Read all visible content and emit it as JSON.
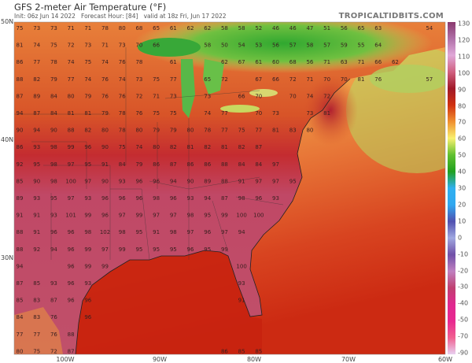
{
  "header": {
    "title": "GFS 2-meter Air Temperature (°F)",
    "subtitle_init": "Init: 06z Jun 14 2022",
    "subtitle_forecast": "Forecast Hour: [84]",
    "subtitle_valid": "valid at 18z Fri, Jun 17 2022",
    "brand": "TROPICALTIDBITS.COM"
  },
  "axes": {
    "lat_labels": [
      "50N",
      "40N",
      "30N"
    ],
    "lon_labels": [
      "100W",
      "90W",
      "80W",
      "70W",
      "60W"
    ]
  },
  "colorbar": {
    "labels": [
      "130",
      "120",
      "110",
      "100",
      "90",
      "80",
      "70",
      "60",
      "50",
      "40",
      "30",
      "20",
      "10",
      "0",
      "-10",
      "-20",
      "-30",
      "-40",
      "-50",
      "-70",
      "-90"
    ],
    "colors": [
      "#8a3a6e",
      "#b070a8",
      "#e0a8d8",
      "#d06080",
      "#a01828",
      "#d03010",
      "#f09030",
      "#f8f070",
      "#60c030",
      "#20a020",
      "#30b0f0",
      "#30a8f0",
      "#5050b0",
      "#a0a8e0",
      "#7050a8",
      "#c080c0",
      "#c04070",
      "#e02890",
      "#e82890",
      "#f06090",
      "#e8d0f0"
    ]
  },
  "temperature_labels": [
    [
      "75",
      "73",
      "73",
      "71",
      "71",
      "78",
      "80",
      "68",
      "65",
      "61",
      "62",
      "62",
      "58",
      "58",
      "52",
      "46",
      "46",
      "47",
      "51",
      "56",
      "65",
      "63",
      null,
      null,
      "54"
    ],
    [
      "81",
      "74",
      "75",
      "72",
      "73",
      "71",
      "73",
      "70",
      "66",
      null,
      null,
      "58",
      "50",
      "54",
      "53",
      "56",
      "57",
      "58",
      "57",
      "59",
      "55",
      "64"
    ],
    [
      "86",
      "77",
      "78",
      "74",
      "75",
      "74",
      "76",
      "78",
      null,
      "61",
      null,
      null,
      "62",
      "67",
      "61",
      "60",
      "68",
      "56",
      "71",
      "63",
      "71",
      "66",
      "62"
    ],
    [
      "88",
      "82",
      "79",
      "77",
      "74",
      "76",
      "74",
      "73",
      "75",
      "77",
      null,
      "65",
      "72",
      null,
      "67",
      "66",
      "72",
      "71",
      "70",
      "70",
      "81",
      "76",
      null,
      null,
      "57"
    ],
    [
      "87",
      "89",
      "84",
      "80",
      "79",
      "76",
      "76",
      "72",
      "71",
      "73",
      null,
      "73",
      null,
      "66",
      "70",
      null,
      "70",
      "74",
      "72"
    ],
    [
      "94",
      "87",
      "84",
      "81",
      "81",
      "79",
      "78",
      "76",
      "75",
      "75",
      null,
      "74",
      "77",
      null,
      "70",
      "73",
      null,
      "73",
      "81"
    ],
    [
      "90",
      "94",
      "90",
      "88",
      "82",
      "80",
      "78",
      "80",
      "79",
      "79",
      "80",
      "78",
      "77",
      "75",
      "77",
      "81",
      "83",
      "80"
    ],
    [
      "86",
      "93",
      "98",
      "99",
      "96",
      "90",
      "75",
      "74",
      "80",
      "82",
      "81",
      "82",
      "81",
      "82",
      "87"
    ],
    [
      "92",
      "95",
      "98",
      "97",
      "95",
      "91",
      "84",
      "79",
      "86",
      "87",
      "86",
      "86",
      "88",
      "84",
      "84",
      "97"
    ],
    [
      "85",
      "90",
      "98",
      "100",
      "97",
      "90",
      "93",
      "96",
      "96",
      "94",
      "90",
      "89",
      "88",
      "91",
      "97",
      "97",
      "95"
    ],
    [
      "89",
      "93",
      "95",
      "97",
      "93",
      "96",
      "96",
      "96",
      "98",
      "96",
      "93",
      "94",
      "87",
      "98",
      "96",
      "93"
    ],
    [
      "91",
      "91",
      "93",
      "101",
      "99",
      "96",
      "97",
      "99",
      "97",
      "97",
      "98",
      "95",
      "99",
      "100",
      "100"
    ],
    [
      "88",
      "91",
      "96",
      "96",
      "98",
      "102",
      "98",
      "95",
      "91",
      "98",
      "97",
      "96",
      "97",
      "94"
    ],
    [
      "88",
      "92",
      "94",
      "96",
      "99",
      "97",
      "99",
      "95",
      "95",
      "95",
      "96",
      "95",
      "99"
    ],
    [
      "94",
      null,
      null,
      "96",
      "99",
      "99",
      null,
      null,
      null,
      null,
      null,
      null,
      null,
      "100"
    ],
    [
      "87",
      "85",
      "93",
      "96",
      "93",
      null,
      null,
      null,
      null,
      null,
      null,
      null,
      null,
      "93"
    ],
    [
      "85",
      "83",
      "87",
      "96",
      "96",
      null,
      null,
      null,
      null,
      null,
      null,
      null,
      null,
      "91"
    ],
    [
      "84",
      "83",
      "76",
      null,
      "96"
    ],
    [
      "77",
      "77",
      "76",
      "88"
    ],
    [
      "80",
      "75",
      "72",
      "87",
      null,
      null,
      null,
      null,
      null,
      null,
      null,
      null,
      "86",
      "85",
      "85"
    ]
  ]
}
